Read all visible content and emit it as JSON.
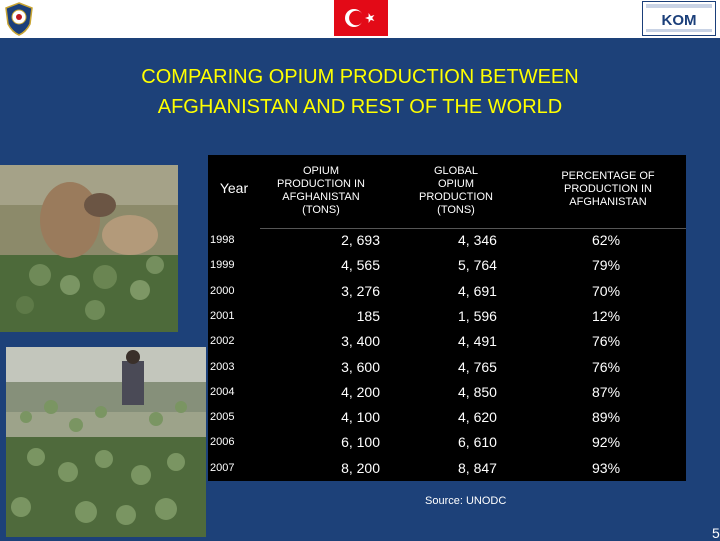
{
  "header": {
    "left_logo": "police-emblem-icon",
    "flag": "turkish-flag-icon",
    "right_logo": "kom-logo-icon",
    "right_logo_text": "KOM"
  },
  "title": {
    "line1": "COMPARING OPIUM PRODUCTION BETWEEN",
    "line2": "AFGHANISTAN AND REST OF THE WORLD"
  },
  "colors": {
    "background": "#1d4179",
    "title": "#ffff00",
    "table_background": "#000000",
    "text": "#ffffff"
  },
  "table": {
    "headers": {
      "year": "Year",
      "afghanistan_line1": "OPIUM",
      "afghanistan_line2": "PRODUCTION IN",
      "afghanistan_line3": "AFGHANISTAN",
      "afghanistan_line4": "(TONS)",
      "global_line1": "GLOBAL",
      "global_line2": "OPIUM",
      "global_line3": "PRODUCTION",
      "global_line4": "(TONS)",
      "percentage_line1": "PERCENTAGE OF",
      "percentage_line2": "PRODUCTION IN",
      "percentage_line3": "AFGHANISTAN"
    },
    "rows": [
      {
        "year": "1998",
        "afghanistan": "2, 693",
        "global": "4, 346",
        "percentage": "62%"
      },
      {
        "year": "1999",
        "afghanistan": "4, 565",
        "global": "5, 764",
        "percentage": "79%"
      },
      {
        "year": "2000",
        "afghanistan": "3, 276",
        "global": "4, 691",
        "percentage": "70%"
      },
      {
        "year": "2001",
        "afghanistan": "185",
        "global": "1, 596",
        "percentage": "12%"
      },
      {
        "year": "2002",
        "afghanistan": "3, 400",
        "global": "4, 491",
        "percentage": "76%"
      },
      {
        "year": "2003",
        "afghanistan": "3, 600",
        "global": "4, 765",
        "percentage": "76%"
      },
      {
        "year": "2004",
        "afghanistan": "4, 200",
        "global": "4, 850",
        "percentage": "87%"
      },
      {
        "year": "2005",
        "afghanistan": "4, 100",
        "global": "4, 620",
        "percentage": "89%"
      },
      {
        "year": "2006",
        "afghanistan": "6, 100",
        "global": "6, 610",
        "percentage": "92%"
      },
      {
        "year": "2007",
        "afghanistan": "8, 200",
        "global": "8, 847",
        "percentage": "93%"
      }
    ]
  },
  "source": "Source: UNODC",
  "page_number": "5"
}
